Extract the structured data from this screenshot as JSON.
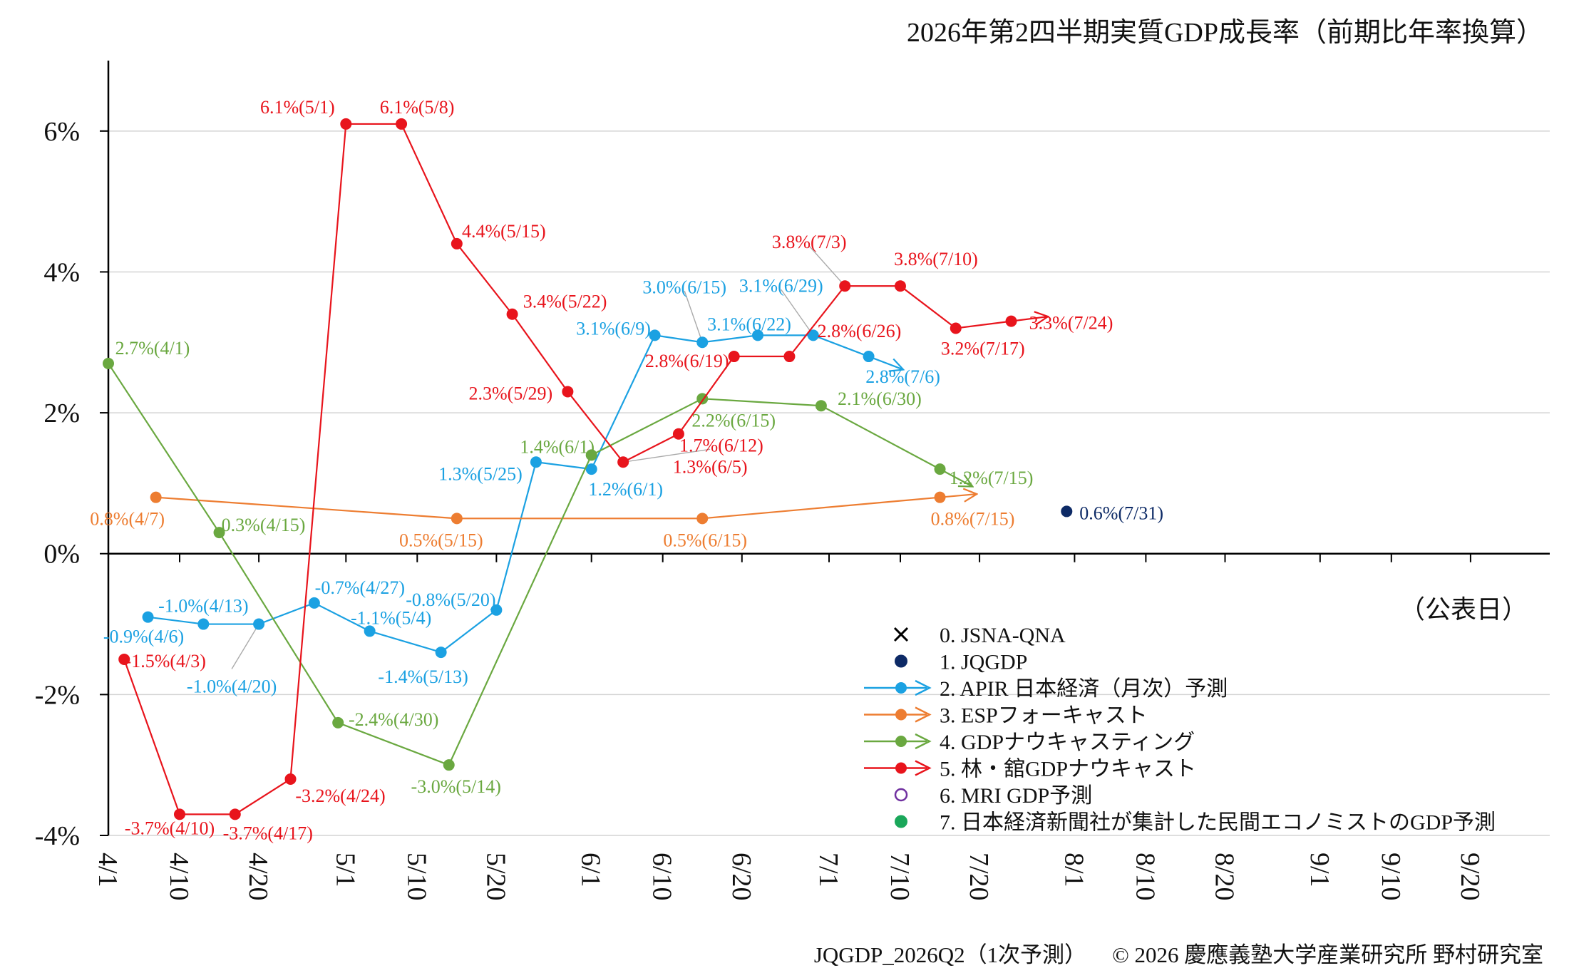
{
  "title": "2026年第2四半期実質GDP成長率（前期比年率換算）",
  "axis_note": "（公表日）",
  "footer": {
    "left": "JQGDP_2026Q2（1次予測）",
    "right": "© 2026 慶應義塾大学産業研究所 野村研究室"
  },
  "chart_data": {
    "type": "line",
    "title": "2026年第2四半期実質GDP成長率（前期比年率換算）",
    "xlabel": "（公表日）",
    "ylabel": "",
    "y_unit": "%",
    "ylim": [
      -4,
      7
    ],
    "yticks": [
      -4,
      -2,
      0,
      2,
      4,
      6
    ],
    "ytick_labels": [
      "-4%",
      "-2%",
      "0%",
      "2%",
      "4%",
      "6%"
    ],
    "xlim": [
      "2026-04-01",
      "2026-09-30"
    ],
    "xticks": [
      "2026-04-01",
      "2026-04-10",
      "2026-04-20",
      "2026-05-01",
      "2026-05-10",
      "2026-05-20",
      "2026-06-01",
      "2026-06-10",
      "2026-06-20",
      "2026-07-01",
      "2026-07-10",
      "2026-07-20",
      "2026-08-01",
      "2026-08-10",
      "2026-08-20",
      "2026-09-01",
      "2026-09-10",
      "2026-09-20"
    ],
    "xtick_labels": [
      "4/1",
      "4/10",
      "4/20",
      "5/1",
      "5/10",
      "5/20",
      "6/1",
      "6/10",
      "6/20",
      "7/1",
      "7/10",
      "7/20",
      "8/1",
      "8/10",
      "8/20",
      "9/1",
      "9/10",
      "9/20"
    ],
    "grid": true,
    "legend_position": "bottom-right",
    "legend": [
      {
        "label": "0. JSNA-QNA",
        "color": "#000000",
        "marker": "x",
        "line": false
      },
      {
        "label": "1. JQGDP",
        "color": "#0d2a66",
        "marker": "dot",
        "line": false
      },
      {
        "label": "2. APIR 日本経済（月次）予測",
        "color": "#1ba1e2",
        "marker": "dot",
        "line": true
      },
      {
        "label": "3. ESPフォーキャスト",
        "color": "#ed7d31",
        "marker": "dot",
        "line": true
      },
      {
        "label": "4. GDPナウキャスティング",
        "color": "#6aa840",
        "marker": "dot",
        "line": true
      },
      {
        "label": "5. 林・舘GDPナウキャスト",
        "color": "#e8141c",
        "marker": "dot",
        "line": true
      },
      {
        "label": "6. MRI GDP予測",
        "color": "#7030a0",
        "marker": "ring",
        "line": false
      },
      {
        "label": "7. 日本経済新聞社が集計した民間エコノミストのGDP予測",
        "color": "#1aa75a",
        "marker": "dot",
        "line": false
      }
    ],
    "series": [
      {
        "name": "1. JQGDP",
        "color": "#0d2a66",
        "line": false,
        "arrow": false,
        "points": [
          {
            "x": "2026-07-31",
            "y": 0.6,
            "label": "0.6%(7/31)",
            "lx": 18,
            "ly": 0,
            "anchor": "start"
          }
        ]
      },
      {
        "name": "2. APIR 日本経済（月次）予測",
        "color": "#1ba1e2",
        "line": true,
        "arrow": true,
        "points": [
          {
            "x": "2026-04-06",
            "y": -0.9,
            "label": "-0.9%(4/6)",
            "lx": -6,
            "ly": 25,
            "anchor": "middle"
          },
          {
            "x": "2026-04-13",
            "y": -1.0,
            "label": "-1.0%(4/13)",
            "lx": 0,
            "ly": -28,
            "anchor": "middle"
          },
          {
            "x": "2026-04-20",
            "y": -1.0,
            "label": "-1.0%(4/20)",
            "lx": -38,
            "ly": 85,
            "anchor": "middle",
            "leader": true
          },
          {
            "x": "2026-04-27",
            "y": -0.7,
            "label": "-0.7%(4/27)",
            "lx": 64,
            "ly": -24,
            "anchor": "middle"
          },
          {
            "x": "2026-05-04",
            "y": -1.1,
            "label": "-1.1%(5/4)",
            "lx": 30,
            "ly": -21,
            "anchor": "middle"
          },
          {
            "x": "2026-05-13",
            "y": -1.4,
            "label": "-1.4%(5/13)",
            "lx": -25,
            "ly": 32,
            "anchor": "middle"
          },
          {
            "x": "2026-05-20",
            "y": -0.8,
            "label": "-0.8%(5/20)",
            "lx": -64,
            "ly": -17,
            "anchor": "middle"
          },
          {
            "x": "2026-05-25",
            "y": 1.3,
            "label": "1.3%(5/25)",
            "lx": -78,
            "ly": 14,
            "anchor": "middle"
          },
          {
            "x": "2026-06-01",
            "y": 1.2,
            "label": "1.2%(6/1)",
            "lx": 48,
            "ly": 26,
            "anchor": "middle"
          },
          {
            "x": "2026-06-09",
            "y": 3.1,
            "label": "3.1%(6/9)",
            "lx": -58,
            "ly": -12,
            "anchor": "middle"
          },
          {
            "x": "2026-06-15",
            "y": 3.0,
            "label": "3.0%(6/15)",
            "lx": -25,
            "ly": -80,
            "anchor": "middle",
            "leader": true
          },
          {
            "x": "2026-06-22",
            "y": 3.1,
            "label": "3.1%(6/22)",
            "lx": -12,
            "ly": -18,
            "anchor": "middle"
          },
          {
            "x": "2026-06-29",
            "y": 3.1,
            "label": "3.1%(6/29)",
            "lx": -45,
            "ly": -72,
            "anchor": "middle",
            "leader": true
          },
          {
            "x": "2026-07-06",
            "y": 2.8,
            "label": "2.8%(7/6)",
            "lx": 48,
            "ly": 26,
            "anchor": "middle"
          }
        ]
      },
      {
        "name": "3. ESPフォーキャスト",
        "color": "#ed7d31",
        "line": true,
        "arrow": true,
        "points": [
          {
            "x": "2026-04-07",
            "y": 0.8,
            "label": "0.8%(4/7)",
            "lx": -40,
            "ly": 28,
            "anchor": "middle"
          },
          {
            "x": "2026-05-15",
            "y": 0.5,
            "label": "0.5%(5/15)",
            "lx": -22,
            "ly": 28,
            "anchor": "middle"
          },
          {
            "x": "2026-06-15",
            "y": 0.5,
            "label": "0.5%(6/15)",
            "lx": 4,
            "ly": 28,
            "anchor": "middle"
          },
          {
            "x": "2026-07-15",
            "y": 0.8,
            "label": "0.8%(7/15)",
            "lx": 46,
            "ly": 28,
            "anchor": "middle"
          }
        ]
      },
      {
        "name": "4. GDPナウキャスティング",
        "color": "#6aa840",
        "line": true,
        "arrow": true,
        "points": [
          {
            "x": "2026-04-01",
            "y": 2.7,
            "label": "2.7%(4/1)",
            "lx": 62,
            "ly": -24,
            "anchor": "middle"
          },
          {
            "x": "2026-04-15",
            "y": 0.3,
            "label": "0.3%(4/15)",
            "lx": 62,
            "ly": -13,
            "anchor": "middle"
          },
          {
            "x": "2026-04-30",
            "y": -2.4,
            "label": "-2.4%(4/30)",
            "lx": 78,
            "ly": -7,
            "anchor": "middle"
          },
          {
            "x": "2026-05-14",
            "y": -3.0,
            "label": "-3.0%(5/14)",
            "lx": 10,
            "ly": 28,
            "anchor": "middle"
          },
          {
            "x": "2026-06-01",
            "y": 1.4,
            "label": "1.4%(6/1)",
            "lx": -48,
            "ly": -14,
            "anchor": "middle"
          },
          {
            "x": "2026-06-15",
            "y": 2.2,
            "label": "2.2%(6/15)",
            "lx": 44,
            "ly": 28,
            "anchor": "middle"
          },
          {
            "x": "2026-06-30",
            "y": 2.1,
            "label": "2.1%(6/30)",
            "lx": 82,
            "ly": -12,
            "anchor": "middle"
          },
          {
            "x": "2026-07-15",
            "y": 1.2,
            "label": "1.2%(7/15)",
            "lx": 72,
            "ly": 10,
            "anchor": "middle"
          }
        ]
      },
      {
        "name": "5. 林・舘GDPナウキャスト",
        "color": "#e8141c",
        "line": true,
        "arrow": true,
        "points": [
          {
            "x": "2026-04-03",
            "y": -1.5,
            "label": "-1.5%(4/3)",
            "lx": 58,
            "ly": 0,
            "anchor": "middle"
          },
          {
            "x": "2026-04-10",
            "y": -3.7,
            "label": "-3.7%(4/10)",
            "lx": -14,
            "ly": 17,
            "anchor": "middle"
          },
          {
            "x": "2026-04-17",
            "y": -3.7,
            "label": "-3.7%(4/17)",
            "lx": 46,
            "ly": 24,
            "anchor": "middle"
          },
          {
            "x": "2026-04-24",
            "y": -3.2,
            "label": "-3.2%(4/24)",
            "lx": 70,
            "ly": 21,
            "anchor": "middle"
          },
          {
            "x": "2026-05-01",
            "y": 6.1,
            "label": "6.1%(5/1)",
            "lx": -68,
            "ly": -26,
            "anchor": "middle"
          },
          {
            "x": "2026-05-08",
            "y": 6.1,
            "label": "6.1%(5/8)",
            "lx": 22,
            "ly": -26,
            "anchor": "middle"
          },
          {
            "x": "2026-05-15",
            "y": 4.4,
            "label": "4.4%(5/15)",
            "lx": 66,
            "ly": -20,
            "anchor": "middle"
          },
          {
            "x": "2026-05-22",
            "y": 3.4,
            "label": "3.4%(5/22)",
            "lx": 74,
            "ly": -20,
            "anchor": "middle"
          },
          {
            "x": "2026-05-29",
            "y": 2.3,
            "label": "2.3%(5/29)",
            "lx": -80,
            "ly": 0,
            "anchor": "middle"
          },
          {
            "x": "2026-06-05",
            "y": 1.3,
            "label": "1.3%(6/5)",
            "lx": 122,
            "ly": 4,
            "anchor": "middle",
            "leader": true
          },
          {
            "x": "2026-06-12",
            "y": 1.7,
            "label": "1.7%(6/12)",
            "lx": 60,
            "ly": 14,
            "anchor": "middle"
          },
          {
            "x": "2026-06-19",
            "y": 2.8,
            "label": "2.8%(6/19)",
            "lx": -66,
            "ly": 4,
            "anchor": "middle"
          },
          {
            "x": "2026-06-26",
            "y": 2.8,
            "label": "2.8%(6/26)",
            "lx": 98,
            "ly": -38,
            "anchor": "middle"
          },
          {
            "x": "2026-07-03",
            "y": 3.8,
            "label": "3.8%(7/3)",
            "lx": -50,
            "ly": -64,
            "anchor": "middle",
            "leader": true
          },
          {
            "x": "2026-07-10",
            "y": 3.8,
            "label": "3.8%(7/10)",
            "lx": 50,
            "ly": -40,
            "anchor": "middle"
          },
          {
            "x": "2026-07-17",
            "y": 3.2,
            "label": "3.2%(7/17)",
            "lx": 38,
            "ly": 26,
            "anchor": "middle"
          },
          {
            "x": "2026-07-24",
            "y": 3.3,
            "label": "3.3%(7/24)",
            "lx": 84,
            "ly": 0,
            "anchor": "middle"
          }
        ]
      }
    ]
  }
}
